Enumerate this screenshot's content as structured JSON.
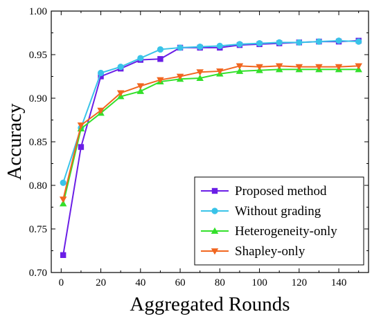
{
  "chart_data": {
    "type": "line",
    "xlabel": "Aggregated Rounds",
    "ylabel": "Accuracy",
    "xlim": [
      -5,
      155
    ],
    "ylim": [
      0.7,
      1.0
    ],
    "xticks": [
      "0",
      "20",
      "40",
      "60",
      "80",
      "100",
      "120",
      "140"
    ],
    "yticks": [
      "0.70",
      "0.75",
      "0.80",
      "0.85",
      "0.90",
      "0.95",
      "1.00"
    ],
    "grid": false,
    "legend_position": "bottom-right",
    "series": [
      {
        "name": "Proposed method",
        "color": "#6a1ee6",
        "marker": "square",
        "x": [
          1,
          10,
          20,
          30,
          40,
          50,
          60,
          70,
          80,
          90,
          100,
          110,
          120,
          130,
          140,
          150
        ],
        "y": [
          0.72,
          0.844,
          0.925,
          0.934,
          0.944,
          0.945,
          0.958,
          0.958,
          0.958,
          0.961,
          0.962,
          0.963,
          0.964,
          0.965,
          0.965,
          0.966
        ]
      },
      {
        "name": "Without grading",
        "color": "#39c3e8",
        "marker": "circle",
        "x": [
          1,
          10,
          20,
          30,
          40,
          50,
          60,
          70,
          80,
          90,
          100,
          110,
          120,
          130,
          140,
          150
        ],
        "y": [
          0.803,
          0.866,
          0.929,
          0.936,
          0.946,
          0.956,
          0.958,
          0.959,
          0.96,
          0.962,
          0.963,
          0.964,
          0.964,
          0.965,
          0.966,
          0.965
        ]
      },
      {
        "name": "Heterogeneity-only",
        "color": "#33e02a",
        "marker": "triangle-up",
        "x": [
          1,
          10,
          20,
          30,
          40,
          50,
          60,
          70,
          80,
          90,
          100,
          110,
          120,
          130,
          140,
          150
        ],
        "y": [
          0.779,
          0.865,
          0.883,
          0.902,
          0.908,
          0.919,
          0.922,
          0.923,
          0.928,
          0.931,
          0.932,
          0.933,
          0.933,
          0.933,
          0.933,
          0.933
        ]
      },
      {
        "name": "Shapley-only",
        "color": "#f1661f",
        "marker": "triangle-down",
        "x": [
          1,
          10,
          20,
          30,
          40,
          50,
          60,
          70,
          80,
          90,
          100,
          110,
          120,
          130,
          140,
          150
        ],
        "y": [
          0.784,
          0.869,
          0.886,
          0.906,
          0.914,
          0.921,
          0.925,
          0.93,
          0.931,
          0.937,
          0.936,
          0.937,
          0.936,
          0.936,
          0.936,
          0.937
        ]
      }
    ]
  }
}
